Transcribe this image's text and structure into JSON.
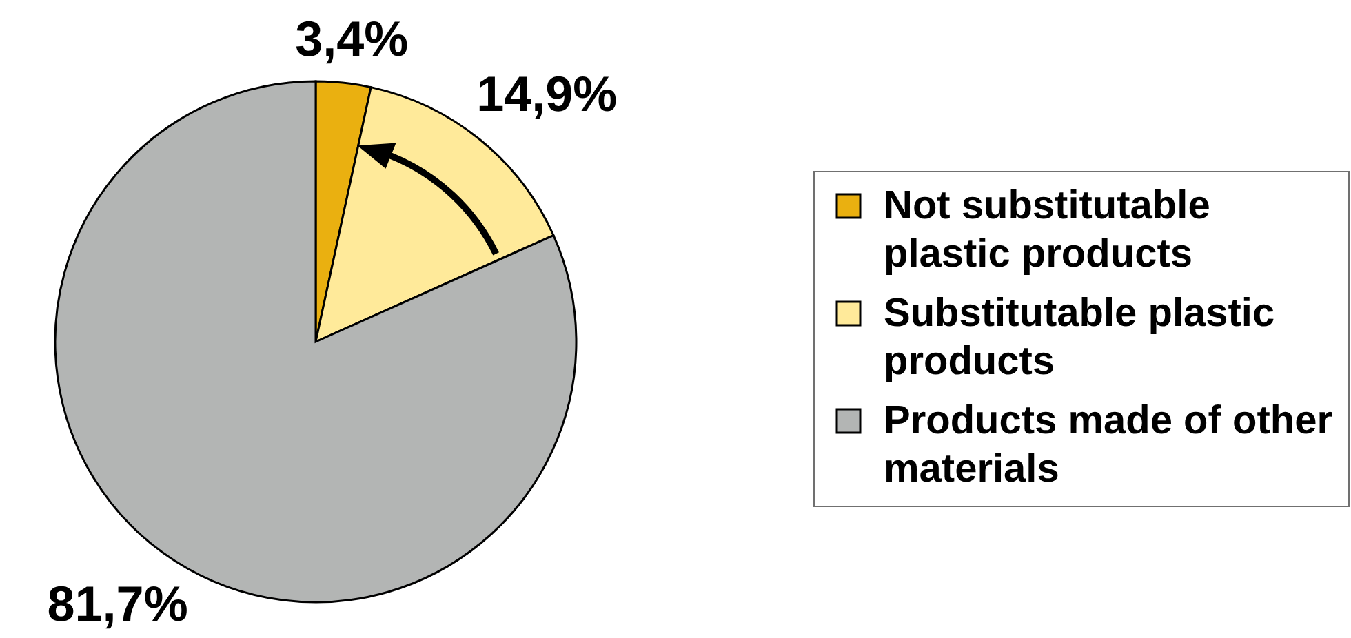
{
  "chart_data": {
    "type": "pie",
    "categories": [
      "Not substitutable plastic products",
      "Substitutable plastic products",
      "Products made of other materials"
    ],
    "values": [
      3.4,
      14.9,
      81.7
    ],
    "colors": [
      "#eab010",
      "#ffea9a",
      "#b3b5b4"
    ],
    "value_labels": [
      "3,4%",
      "14,9%",
      "81,7%"
    ],
    "legend": "right"
  }
}
